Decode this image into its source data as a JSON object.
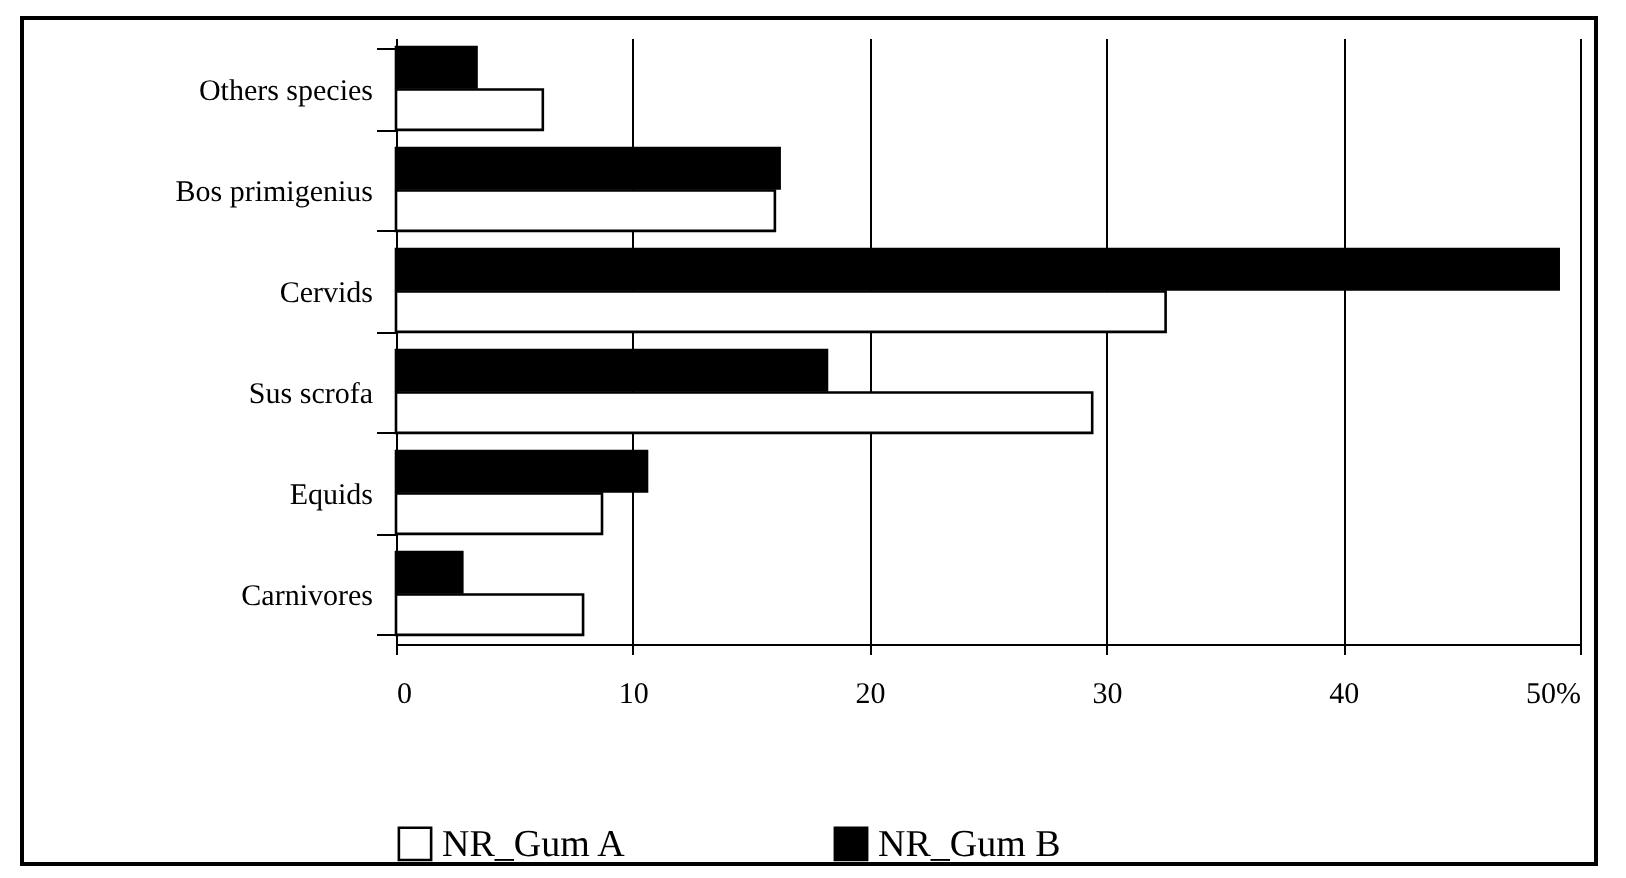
{
  "chart_data": {
    "type": "bar",
    "orientation": "horizontal",
    "categories": [
      "Others species",
      "Bos primigenius",
      "Cervids",
      "Sus scrofa",
      "Equids",
      "Carnivores"
    ],
    "series": [
      {
        "name": "NR_Gum A",
        "color": "#ffffff",
        "values": [
          6.2,
          16.0,
          32.5,
          29.4,
          8.7,
          7.9
        ]
      },
      {
        "name": "NR_Gum B",
        "color": "#000000",
        "values": [
          3.4,
          16.2,
          49.1,
          18.2,
          10.6,
          2.8
        ]
      }
    ],
    "xlim": [
      0,
      50
    ],
    "xticks": [
      0,
      10,
      20,
      30,
      40,
      {
        "value": 50,
        "label": "50%"
      }
    ],
    "grid": "x",
    "legend": "bottom"
  }
}
